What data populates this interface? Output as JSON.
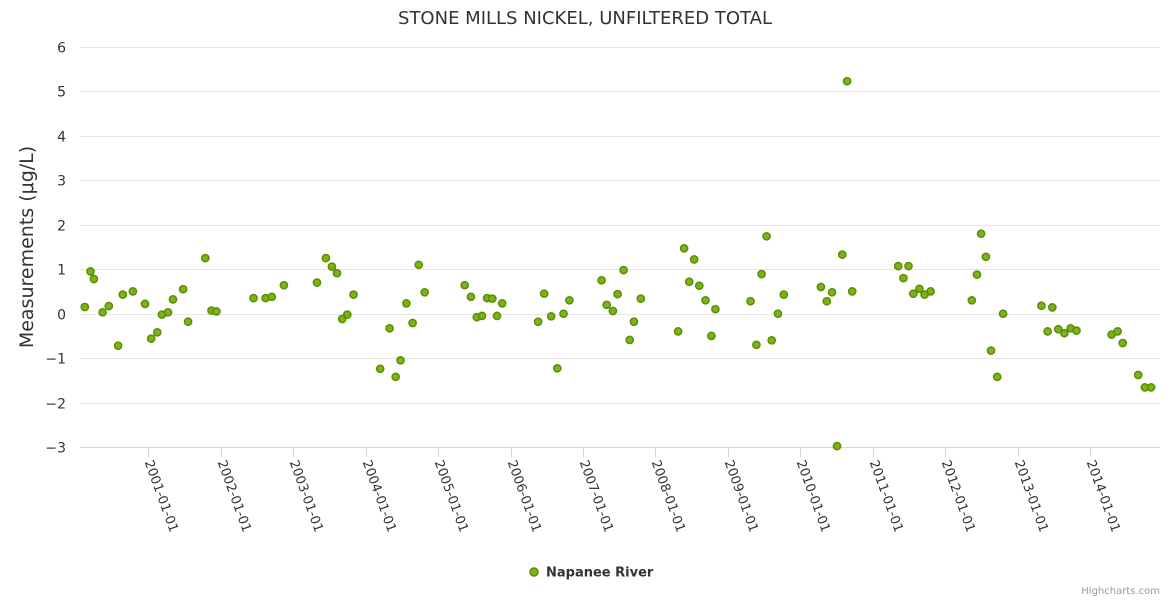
{
  "chart_data": {
    "type": "scatter",
    "title": "STONE MILLS NICKEL, UNFILTERED TOTAL",
    "xlabel": "",
    "ylabel": "Measurements (μg/L)",
    "ylim": [
      -3,
      6
    ],
    "yticks": [
      -3,
      -2,
      -1,
      0,
      1,
      2,
      3,
      4,
      5,
      6
    ],
    "ytick_labels": [
      "−3",
      "−2",
      "−1",
      "0",
      "1",
      "2",
      "3",
      "4",
      "5",
      "6"
    ],
    "xlim": [
      "2000-01-22",
      "2014-12-20"
    ],
    "xticks": [
      "2001-01-01",
      "2002-01-01",
      "2003-01-01",
      "2004-01-01",
      "2005-01-01",
      "2006-01-01",
      "2007-01-01",
      "2008-01-01",
      "2009-01-01",
      "2010-01-01",
      "2011-01-01",
      "2012-01-01",
      "2013-01-01",
      "2014-01-01"
    ],
    "grid": true,
    "legend_position": "bottom-center",
    "marker_color": "#7cb21c",
    "marker_edge_color": "#5a8f00",
    "series": [
      {
        "name": "Napanee River",
        "points": [
          {
            "x": "2000-02-15",
            "y": 0.15
          },
          {
            "x": "2000-03-15",
            "y": 0.95
          },
          {
            "x": "2000-04-01",
            "y": 0.78
          },
          {
            "x": "2000-05-15",
            "y": 0.03
          },
          {
            "x": "2000-06-15",
            "y": 0.17
          },
          {
            "x": "2000-08-01",
            "y": -0.72
          },
          {
            "x": "2000-08-25",
            "y": 0.43
          },
          {
            "x": "2000-10-15",
            "y": 0.5
          },
          {
            "x": "2000-12-15",
            "y": 0.22
          },
          {
            "x": "2001-01-15",
            "y": -0.56
          },
          {
            "x": "2001-02-15",
            "y": -0.42
          },
          {
            "x": "2001-03-10",
            "y": -0.02
          },
          {
            "x": "2001-04-10",
            "y": 0.03
          },
          {
            "x": "2001-05-05",
            "y": 0.32
          },
          {
            "x": "2001-06-25",
            "y": 0.55
          },
          {
            "x": "2001-07-20",
            "y": -0.18
          },
          {
            "x": "2001-10-15",
            "y": 1.25
          },
          {
            "x": "2001-11-15",
            "y": 0.07
          },
          {
            "x": "2001-12-10",
            "y": 0.05
          },
          {
            "x": "2002-06-15",
            "y": 0.35
          },
          {
            "x": "2002-08-15",
            "y": 0.35
          },
          {
            "x": "2002-09-15",
            "y": 0.38
          },
          {
            "x": "2002-11-15",
            "y": 0.64
          },
          {
            "x": "2003-05-01",
            "y": 0.7
          },
          {
            "x": "2003-06-15",
            "y": 1.25
          },
          {
            "x": "2003-07-15",
            "y": 1.06
          },
          {
            "x": "2003-08-10",
            "y": 0.91
          },
          {
            "x": "2003-09-05",
            "y": -0.12
          },
          {
            "x": "2003-10-01",
            "y": -0.02
          },
          {
            "x": "2003-11-01",
            "y": 0.43
          },
          {
            "x": "2004-03-15",
            "y": -1.24
          },
          {
            "x": "2004-05-01",
            "y": -0.33
          },
          {
            "x": "2004-06-01",
            "y": -1.42
          },
          {
            "x": "2004-06-25",
            "y": -1.05
          },
          {
            "x": "2004-07-25",
            "y": 0.23
          },
          {
            "x": "2004-08-25",
            "y": -0.21
          },
          {
            "x": "2004-09-25",
            "y": 1.1
          },
          {
            "x": "2004-10-25",
            "y": 0.48
          },
          {
            "x": "2005-05-15",
            "y": 0.64
          },
          {
            "x": "2005-06-15",
            "y": 0.38
          },
          {
            "x": "2005-07-15",
            "y": -0.08
          },
          {
            "x": "2005-08-10",
            "y": -0.05
          },
          {
            "x": "2005-09-05",
            "y": 0.35
          },
          {
            "x": "2005-10-01",
            "y": 0.34
          },
          {
            "x": "2005-10-25",
            "y": -0.05
          },
          {
            "x": "2005-11-20",
            "y": 0.23
          },
          {
            "x": "2006-05-20",
            "y": -0.18
          },
          {
            "x": "2006-06-20",
            "y": 0.45
          },
          {
            "x": "2006-07-25",
            "y": -0.06
          },
          {
            "x": "2006-08-25",
            "y": -1.23
          },
          {
            "x": "2006-09-25",
            "y": 0.0
          },
          {
            "x": "2006-10-25",
            "y": 0.3
          },
          {
            "x": "2007-04-05",
            "y": 0.75
          },
          {
            "x": "2007-05-01",
            "y": 0.2
          },
          {
            "x": "2007-06-01",
            "y": 0.06
          },
          {
            "x": "2007-06-25",
            "y": 0.44
          },
          {
            "x": "2007-07-25",
            "y": 0.98
          },
          {
            "x": "2007-08-25",
            "y": -0.59
          },
          {
            "x": "2007-09-15",
            "y": -0.18
          },
          {
            "x": "2007-10-20",
            "y": 0.34
          },
          {
            "x": "2008-04-25",
            "y": -0.4
          },
          {
            "x": "2008-05-25",
            "y": 1.47
          },
          {
            "x": "2008-06-20",
            "y": 0.72
          },
          {
            "x": "2008-07-15",
            "y": 1.22
          },
          {
            "x": "2008-08-10",
            "y": 0.63
          },
          {
            "x": "2008-09-10",
            "y": 0.3
          },
          {
            "x": "2008-10-10",
            "y": -0.5
          },
          {
            "x": "2008-10-30",
            "y": 0.1
          },
          {
            "x": "2009-04-25",
            "y": 0.28
          },
          {
            "x": "2009-05-25",
            "y": -0.7
          },
          {
            "x": "2009-06-20",
            "y": 0.89
          },
          {
            "x": "2009-07-15",
            "y": 1.74
          },
          {
            "x": "2009-08-10",
            "y": -0.6
          },
          {
            "x": "2009-09-10",
            "y": 0.0
          },
          {
            "x": "2009-10-10",
            "y": 0.43
          },
          {
            "x": "2010-04-15",
            "y": 0.6
          },
          {
            "x": "2010-05-15",
            "y": 0.28
          },
          {
            "x": "2010-06-10",
            "y": 0.48
          },
          {
            "x": "2010-07-05",
            "y": -2.98
          },
          {
            "x": "2010-08-01",
            "y": 1.33
          },
          {
            "x": "2010-08-25",
            "y": 5.23
          },
          {
            "x": "2010-09-20",
            "y": 0.5
          },
          {
            "x": "2011-05-10",
            "y": 1.07
          },
          {
            "x": "2011-06-05",
            "y": 0.8
          },
          {
            "x": "2011-07-01",
            "y": 1.07
          },
          {
            "x": "2011-07-25",
            "y": 0.45
          },
          {
            "x": "2011-08-25",
            "y": 0.56
          },
          {
            "x": "2011-09-20",
            "y": 0.43
          },
          {
            "x": "2011-10-20",
            "y": 0.5
          },
          {
            "x": "2012-05-15",
            "y": 0.3
          },
          {
            "x": "2012-06-10",
            "y": 0.88
          },
          {
            "x": "2012-07-01",
            "y": 1.8
          },
          {
            "x": "2012-07-25",
            "y": 1.28
          },
          {
            "x": "2012-08-20",
            "y": -0.83
          },
          {
            "x": "2012-09-20",
            "y": -1.42
          },
          {
            "x": "2012-10-20",
            "y": 0.0
          },
          {
            "x": "2013-05-01",
            "y": 0.18
          },
          {
            "x": "2013-06-01",
            "y": -0.4
          },
          {
            "x": "2013-06-25",
            "y": 0.14
          },
          {
            "x": "2013-07-25",
            "y": -0.35
          },
          {
            "x": "2013-08-25",
            "y": -0.44
          },
          {
            "x": "2013-09-25",
            "y": -0.33
          },
          {
            "x": "2013-10-25",
            "y": -0.38
          },
          {
            "x": "2014-04-20",
            "y": -0.47
          },
          {
            "x": "2014-05-20",
            "y": -0.4
          },
          {
            "x": "2014-06-15",
            "y": -0.66
          },
          {
            "x": "2014-09-01",
            "y": -1.38
          },
          {
            "x": "2014-10-05",
            "y": -1.66
          },
          {
            "x": "2014-11-05",
            "y": -1.66
          }
        ]
      }
    ]
  },
  "credits": "Highcharts.com"
}
